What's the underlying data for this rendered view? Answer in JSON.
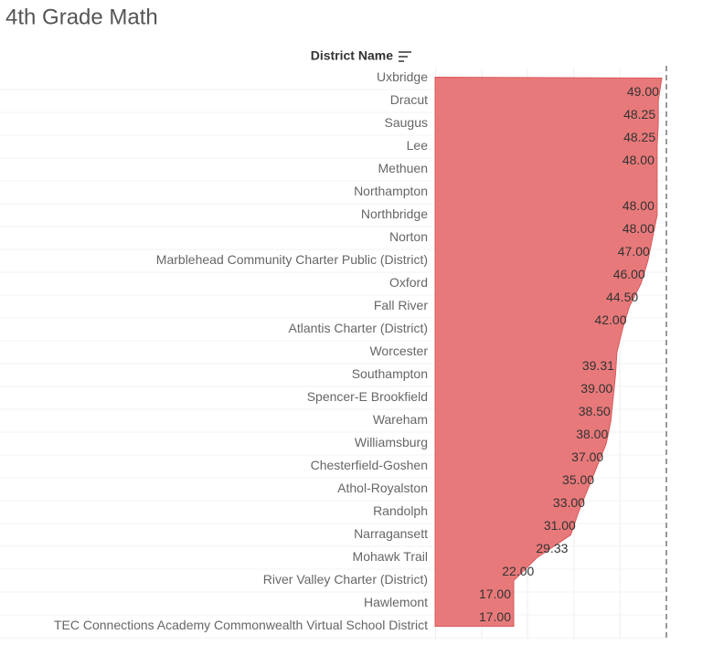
{
  "title": "4th Grade Math",
  "chart_data": {
    "type": "area",
    "axis_label": "District Name",
    "categories": [
      "Uxbridge",
      "Dracut",
      "Saugus",
      "Lee",
      "Methuen",
      "Northampton",
      "Northbridge",
      "Norton",
      "Marblehead Community Charter Public (District)",
      "Oxford",
      "Fall River",
      "Atlantis Charter (District)",
      "Worcester",
      "Southampton",
      "Spencer-E Brookfield",
      "Wareham",
      "Williamsburg",
      "Chesterfield-Goshen",
      "Athol-Royalston",
      "Randolph",
      "Narragansett",
      "Mohawk Trail",
      "River Valley Charter (District)",
      "Hawlemont",
      "TEC Connections Academy Commonwealth Virtual School District"
    ],
    "values": [
      49,
      48.25,
      48.25,
      48,
      48,
      48,
      48,
      47,
      46,
      44.5,
      42,
      40.5,
      39.31,
      39,
      38.5,
      38,
      37,
      35,
      33,
      31,
      29.33,
      22,
      17,
      17,
      17
    ],
    "value_labels": [
      "49.00",
      "48.25",
      "48.25",
      "48.00",
      null,
      "48.00",
      "48.00",
      "47.00",
      "46.00",
      "44.50",
      "42.00",
      null,
      "39.31",
      "39.00",
      "38.50",
      "38.00",
      "37.00",
      "35.00",
      "33.00",
      "31.00",
      "29.33",
      "22.00",
      "17.00",
      "17.00",
      null
    ],
    "color": "#e8797a",
    "xlim": [
      0,
      50
    ]
  }
}
